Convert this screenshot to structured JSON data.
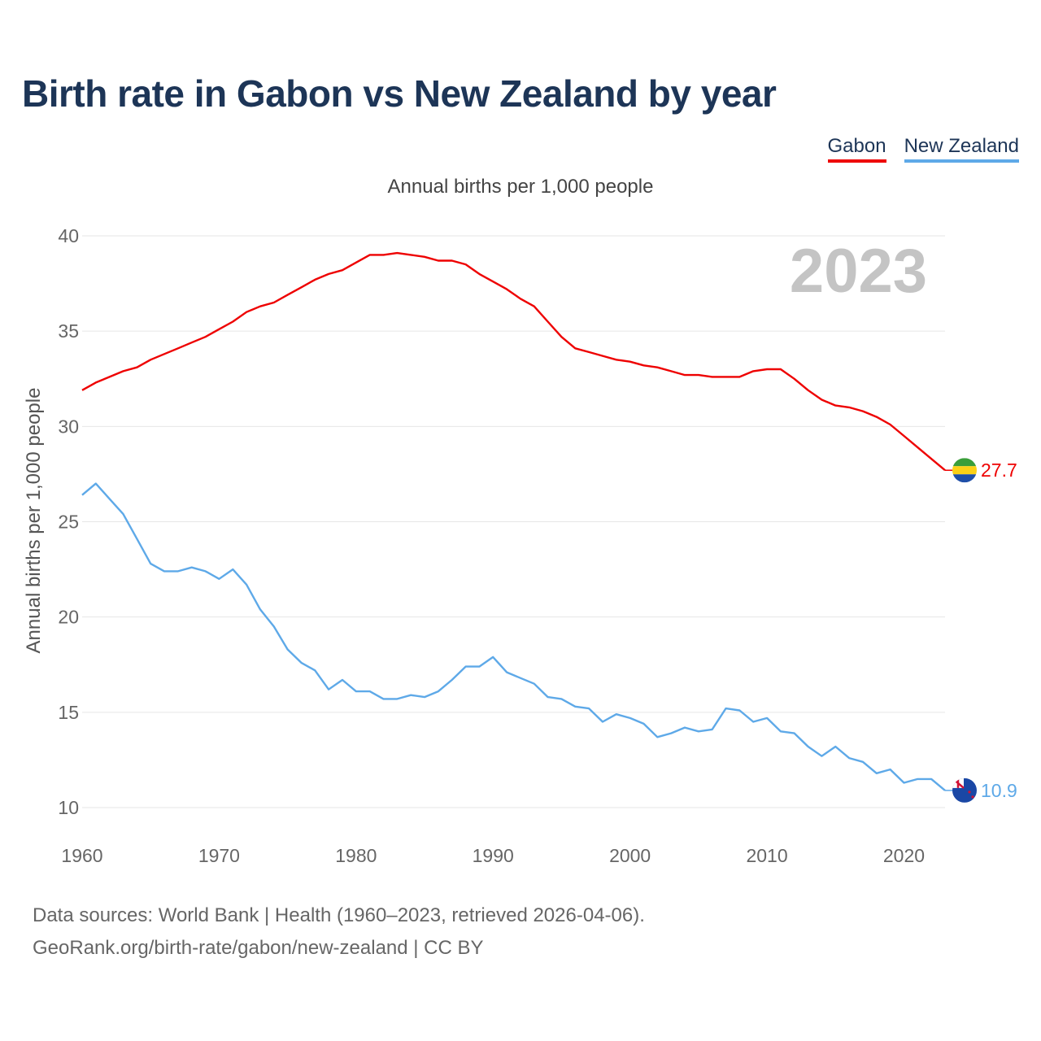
{
  "header": {
    "title": "Birth rate in Gabon vs New Zealand by year",
    "subtitle": "Annual births per 1,000 people",
    "year_watermark": "2023"
  },
  "legend": {
    "gabon_label": "Gabon",
    "nz_label": "New Zealand"
  },
  "footer": {
    "sources": "Data sources: World Bank | Health (1960–2023, retrieved 2026-04-06).",
    "url": "GeoRank.org/birth-rate/gabon/new-zealand | CC BY"
  },
  "colors": {
    "gabon": "#ee0000",
    "new_zealand": "#5ea9e8",
    "title": "#1d3557",
    "grid": "#e6e6e6",
    "tick": "#666666"
  },
  "chart_data": {
    "type": "line",
    "title": "Birth rate in Gabon vs New Zealand by year",
    "xlabel": "",
    "ylabel": "Annual births per 1,000 people",
    "xlim": [
      1960,
      2023
    ],
    "ylim": [
      10,
      40
    ],
    "x_ticks": [
      1960,
      1970,
      1980,
      1990,
      2000,
      2010,
      2020
    ],
    "y_ticks": [
      10,
      15,
      20,
      25,
      30,
      35,
      40
    ],
    "x": [
      1960,
      1961,
      1962,
      1963,
      1964,
      1965,
      1966,
      1967,
      1968,
      1969,
      1970,
      1971,
      1972,
      1973,
      1974,
      1975,
      1976,
      1977,
      1978,
      1979,
      1980,
      1981,
      1982,
      1983,
      1984,
      1985,
      1986,
      1987,
      1988,
      1989,
      1990,
      1991,
      1992,
      1993,
      1994,
      1995,
      1996,
      1997,
      1998,
      1999,
      2000,
      2001,
      2002,
      2003,
      2004,
      2005,
      2006,
      2007,
      2008,
      2009,
      2010,
      2011,
      2012,
      2013,
      2014,
      2015,
      2016,
      2017,
      2018,
      2019,
      2020,
      2021,
      2022,
      2023
    ],
    "series": [
      {
        "name": "Gabon",
        "values": [
          31.9,
          32.3,
          32.6,
          32.9,
          33.1,
          33.5,
          33.8,
          34.1,
          34.4,
          34.7,
          35.1,
          35.5,
          36.0,
          36.3,
          36.5,
          36.9,
          37.3,
          37.7,
          38.0,
          38.2,
          38.6,
          39.0,
          39.0,
          39.1,
          39.0,
          38.9,
          38.7,
          38.7,
          38.5,
          38.0,
          37.6,
          37.2,
          36.7,
          36.3,
          35.5,
          34.7,
          34.1,
          33.9,
          33.7,
          33.5,
          33.4,
          33.2,
          33.1,
          32.9,
          32.7,
          32.7,
          32.6,
          32.6,
          32.6,
          32.9,
          33.0,
          33.0,
          32.5,
          31.9,
          31.4,
          31.1,
          31.0,
          30.8,
          30.5,
          30.1,
          29.5,
          28.9,
          28.3,
          27.7
        ],
        "end_label": "27.7"
      },
      {
        "name": "New Zealand",
        "values": [
          26.4,
          27.0,
          26.2,
          25.4,
          24.1,
          22.8,
          22.4,
          22.4,
          22.6,
          22.4,
          22.0,
          22.5,
          21.7,
          20.4,
          19.5,
          18.3,
          17.6,
          17.2,
          16.2,
          16.7,
          16.1,
          16.1,
          15.7,
          15.7,
          15.9,
          15.8,
          16.1,
          16.7,
          17.4,
          17.4,
          17.9,
          17.1,
          16.8,
          16.5,
          15.8,
          15.7,
          15.3,
          15.2,
          14.5,
          14.9,
          14.7,
          14.4,
          13.7,
          13.9,
          14.2,
          14.0,
          14.1,
          15.2,
          15.1,
          14.5,
          14.7,
          14.0,
          13.9,
          13.2,
          12.7,
          13.2,
          12.6,
          12.4,
          11.8,
          12.0,
          11.3,
          11.5,
          11.5,
          10.9
        ],
        "end_label": "10.9"
      }
    ]
  }
}
